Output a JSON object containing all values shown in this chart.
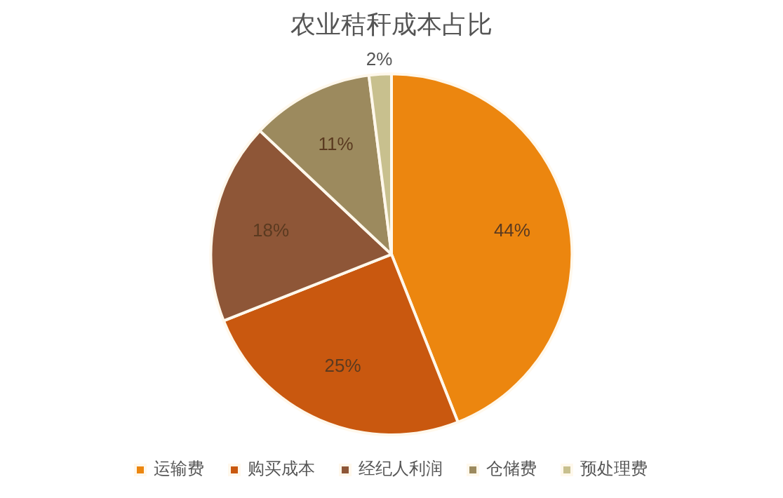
{
  "chart_data": {
    "type": "pie",
    "title": "农业秸秆成本占比",
    "categories": [
      "运输费",
      "购买成本",
      "经纪人利润",
      "仓储费",
      "预处理费"
    ],
    "values": [
      44,
      25,
      18,
      11,
      2
    ],
    "colors": [
      "#ec860f",
      "#c9580f",
      "#8e5637",
      "#9c8a5e",
      "#c8c08e"
    ],
    "value_labels": [
      "44%",
      "25%",
      "18%",
      "11%",
      "2%"
    ],
    "legend": "bottom"
  }
}
